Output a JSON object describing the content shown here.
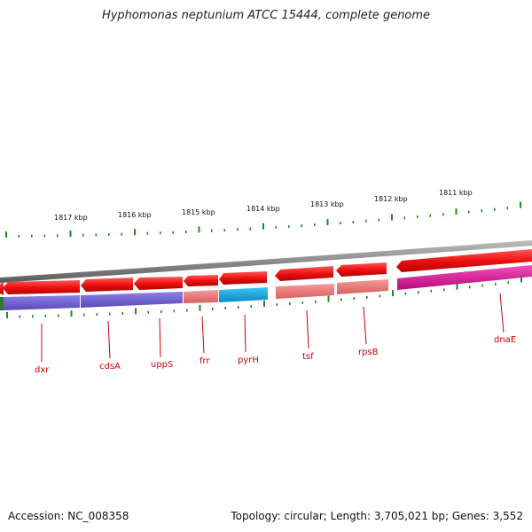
{
  "title": "Hyphomonas neptunium ATCC 15444, complete genome",
  "footer": {
    "accession": "Accession: NC_008358",
    "summary": "Topology: circular; Length: 3,705,021 bp; Genes: 3,552"
  },
  "colors": {
    "backbone": "#8c8c8c",
    "gene_red": "#ee1111",
    "tick_green": "#1f8a1f",
    "label_red": "#cc0000",
    "track_blue": "#6a5acd",
    "track_cyan": "#1aa6e0",
    "track_pink": "#ee7777",
    "track_magenta": "#e0109a"
  },
  "kbp_labels": [
    "1817 kbp",
    "1816 kbp",
    "1815 kbp",
    "1814 kbp",
    "1813 kbp",
    "1812 kbp",
    "1811 kbp"
  ],
  "genes": [
    "dxr",
    "cdsA",
    "uppS",
    "frr",
    "pyrH",
    "tsf",
    "rpsB",
    "dnaE"
  ]
}
